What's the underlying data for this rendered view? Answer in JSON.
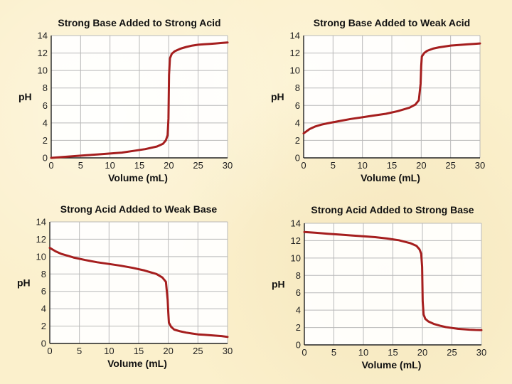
{
  "chart_data": [
    {
      "type": "line",
      "title": "Strong Base Added to Strong Acid",
      "xlabel": "Volume (mL)",
      "ylabel": "pH",
      "xlim": [
        0,
        30
      ],
      "ylim": [
        0,
        14
      ],
      "xticks": [
        0,
        5,
        10,
        15,
        20,
        25,
        30
      ],
      "yticks": [
        0,
        2,
        4,
        6,
        8,
        10,
        12,
        14
      ],
      "grid": true,
      "line_color": "#a51e1e",
      "x": [
        0,
        2,
        4,
        6,
        8,
        10,
        12,
        14,
        16,
        18,
        19,
        19.5,
        19.8,
        19.95,
        20,
        20.05,
        20.2,
        20.5,
        21,
        22,
        23,
        24,
        25,
        26,
        27,
        28,
        29,
        30
      ],
      "y": [
        0.0,
        0.1,
        0.2,
        0.3,
        0.4,
        0.5,
        0.6,
        0.8,
        1.0,
        1.3,
        1.6,
        2.0,
        2.6,
        4.5,
        7.0,
        9.5,
        11.4,
        11.9,
        12.2,
        12.5,
        12.7,
        12.85,
        12.95,
        13.0,
        13.05,
        13.1,
        13.15,
        13.2
      ]
    },
    {
      "type": "line",
      "title": "Strong Base Added to Weak Acid",
      "xlabel": "Volume (mL)",
      "ylabel": "pH",
      "xlim": [
        0,
        30
      ],
      "ylim": [
        0,
        14
      ],
      "xticks": [
        0,
        5,
        10,
        15,
        20,
        25,
        30
      ],
      "yticks": [
        0,
        2,
        4,
        6,
        8,
        10,
        12,
        14
      ],
      "grid": true,
      "line_color": "#a51e1e",
      "x": [
        0,
        1,
        2,
        3,
        4,
        6,
        8,
        10,
        12,
        14,
        16,
        18,
        19,
        19.6,
        19.9,
        20,
        20.1,
        20.5,
        21,
        22,
        23,
        24,
        25,
        26,
        27,
        28,
        29,
        30
      ],
      "y": [
        2.8,
        3.3,
        3.6,
        3.8,
        3.95,
        4.2,
        4.45,
        4.65,
        4.85,
        5.05,
        5.35,
        5.75,
        6.1,
        6.6,
        8.5,
        10.5,
        11.6,
        12.0,
        12.25,
        12.5,
        12.65,
        12.75,
        12.85,
        12.9,
        12.95,
        13.0,
        13.05,
        13.1
      ]
    },
    {
      "type": "line",
      "title": "Strong Acid Added to Weak Base",
      "xlabel": "Volume (mL)",
      "ylabel": "pH",
      "xlim": [
        0,
        30
      ],
      "ylim": [
        0,
        14
      ],
      "xticks": [
        0,
        5,
        10,
        15,
        20,
        25,
        30
      ],
      "yticks": [
        0,
        2,
        4,
        6,
        8,
        10,
        12,
        14
      ],
      "grid": true,
      "line_color": "#a51e1e",
      "x": [
        0,
        1,
        2,
        3,
        4,
        6,
        8,
        10,
        12,
        14,
        16,
        18,
        19,
        19.6,
        19.9,
        20,
        20.1,
        20.5,
        21,
        22,
        23,
        24,
        25,
        26,
        27,
        28,
        29,
        30
      ],
      "y": [
        11.0,
        10.6,
        10.3,
        10.1,
        9.9,
        9.6,
        9.35,
        9.15,
        8.95,
        8.7,
        8.4,
        8.0,
        7.6,
        7.1,
        5.0,
        3.5,
        2.4,
        1.9,
        1.6,
        1.4,
        1.25,
        1.15,
        1.05,
        1.0,
        0.95,
        0.9,
        0.85,
        0.75
      ]
    },
    {
      "type": "line",
      "title": "Strong Acid Added to Strong Base",
      "xlabel": "Volume (mL)",
      "ylabel": "pH",
      "xlim": [
        0,
        30
      ],
      "ylim": [
        0,
        14
      ],
      "xticks": [
        0,
        5,
        10,
        15,
        20,
        25,
        30
      ],
      "yticks": [
        0,
        2,
        4,
        6,
        8,
        10,
        12,
        14
      ],
      "grid": true,
      "line_color": "#a51e1e",
      "x": [
        0,
        2,
        4,
        6,
        8,
        10,
        12,
        14,
        16,
        18,
        19,
        19.5,
        19.8,
        19.95,
        20,
        20.05,
        20.2,
        20.5,
        21,
        22,
        23,
        24,
        25,
        26,
        27,
        28,
        29,
        30
      ],
      "y": [
        13.0,
        12.9,
        12.8,
        12.7,
        12.6,
        12.5,
        12.4,
        12.25,
        12.05,
        11.7,
        11.4,
        11.0,
        10.5,
        9.0,
        7.0,
        5.0,
        3.5,
        3.0,
        2.7,
        2.4,
        2.2,
        2.05,
        1.95,
        1.85,
        1.8,
        1.75,
        1.72,
        1.7
      ]
    }
  ]
}
